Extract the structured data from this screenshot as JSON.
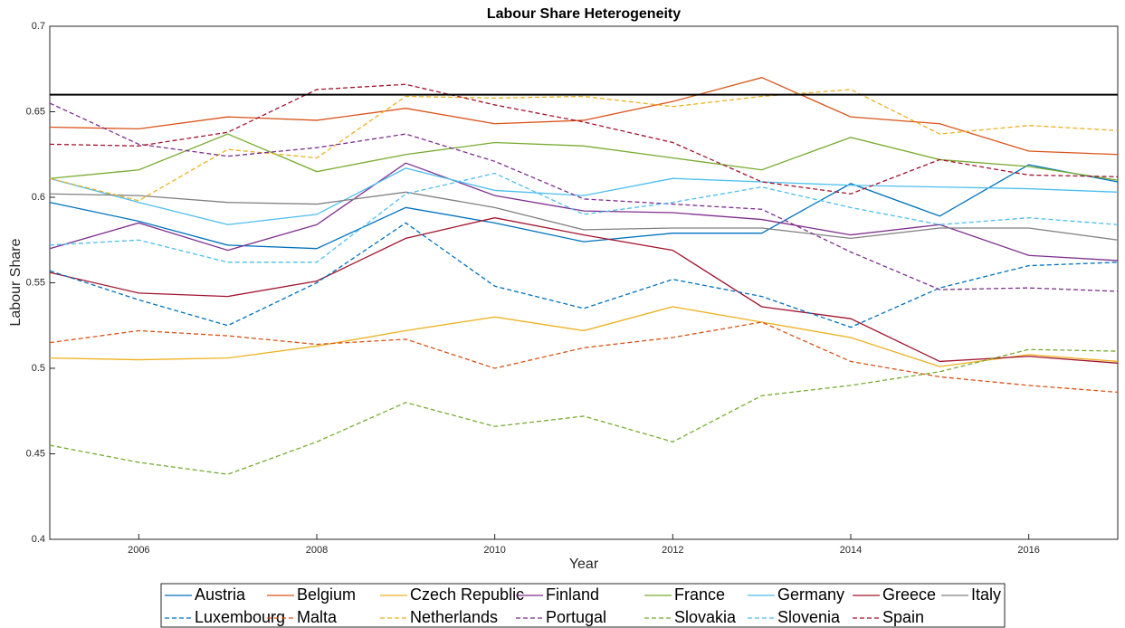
{
  "chart_data": {
    "type": "line",
    "title": "Labour Share Heterogeneity",
    "x_label": "Year",
    "y_label": "Labour Share",
    "x": [
      2005,
      2006,
      2007,
      2008,
      2009,
      2010,
      2011,
      2012,
      2013,
      2014,
      2015,
      2016,
      2017
    ],
    "xlim": [
      2005,
      2017
    ],
    "xticks": [
      2006,
      2008,
      2010,
      2012,
      2014,
      2016
    ],
    "ylim": [
      0.4,
      0.7
    ],
    "yticks": [
      0.4,
      0.45,
      0.5,
      0.55,
      0.6,
      0.65,
      0.7
    ],
    "reference_line": {
      "value": 0.66,
      "color": "#000000"
    },
    "legend": "bottom",
    "series": [
      {
        "name": "Austria",
        "color": "#0072BD",
        "line_style": "solid",
        "values": [
          0.597,
          0.586,
          0.572,
          0.57,
          0.594,
          0.585,
          0.574,
          0.579,
          0.579,
          0.608,
          0.589,
          0.619,
          0.609
        ]
      },
      {
        "name": "Belgium",
        "color": "#D95319",
        "line_style": "solid",
        "values": [
          0.641,
          0.64,
          0.647,
          0.645,
          0.652,
          0.643,
          0.645,
          0.656,
          0.67,
          0.647,
          0.643,
          0.627,
          0.625
        ]
      },
      {
        "name": "Czech Republic",
        "color": "#EDB120",
        "line_style": "solid",
        "values": [
          0.506,
          0.505,
          0.506,
          0.513,
          0.522,
          0.53,
          0.522,
          0.536,
          0.527,
          0.518,
          0.501,
          0.508,
          0.504
        ]
      },
      {
        "name": "Finland",
        "color": "#7E2F8E",
        "line_style": "solid",
        "values": [
          0.57,
          0.585,
          0.569,
          0.584,
          0.62,
          0.601,
          0.592,
          0.591,
          0.587,
          0.578,
          0.584,
          0.566,
          0.563
        ]
      },
      {
        "name": "France",
        "color": "#77AC30",
        "line_style": "solid",
        "values": [
          0.611,
          0.616,
          0.637,
          0.615,
          0.625,
          0.632,
          0.63,
          0.623,
          0.616,
          0.635,
          0.622,
          0.618,
          0.61
        ]
      },
      {
        "name": "Germany",
        "color": "#4DBEEE",
        "line_style": "solid",
        "values": [
          0.611,
          0.597,
          0.584,
          0.59,
          0.617,
          0.604,
          0.601,
          0.611,
          0.609,
          0.607,
          0.606,
          0.605,
          0.603
        ]
      },
      {
        "name": "Greece",
        "color": "#A2142F",
        "line_style": "solid",
        "values": [
          0.556,
          0.544,
          0.542,
          0.551,
          0.576,
          0.588,
          0.578,
          0.569,
          0.536,
          0.529,
          0.504,
          0.507,
          0.503
        ]
      },
      {
        "name": "Italy",
        "color": "#808080",
        "line_style": "solid",
        "values": [
          0.602,
          0.601,
          0.597,
          0.596,
          0.603,
          0.594,
          0.581,
          0.582,
          0.582,
          0.576,
          0.582,
          0.582,
          0.575
        ]
      },
      {
        "name": "Luxembourg",
        "color": "#0072BD",
        "line_style": "dashed",
        "values": [
          0.557,
          0.54,
          0.525,
          0.55,
          0.585,
          0.548,
          0.535,
          0.552,
          0.542,
          0.524,
          0.547,
          0.56,
          0.562
        ]
      },
      {
        "name": "Malta",
        "color": "#D95319",
        "line_style": "dashed",
        "values": [
          0.515,
          0.522,
          0.519,
          0.514,
          0.517,
          0.5,
          0.512,
          0.518,
          0.527,
          0.504,
          0.495,
          0.49,
          0.486
        ]
      },
      {
        "name": "Netherlands",
        "color": "#EDB120",
        "line_style": "dashed",
        "values": [
          0.611,
          0.598,
          0.628,
          0.623,
          0.659,
          0.658,
          0.659,
          0.653,
          0.659,
          0.663,
          0.637,
          0.642,
          0.639
        ]
      },
      {
        "name": "Portugal",
        "color": "#7E2F8E",
        "line_style": "dashed",
        "values": [
          0.655,
          0.631,
          0.624,
          0.629,
          0.637,
          0.621,
          0.599,
          0.596,
          0.593,
          0.568,
          0.546,
          0.547,
          0.545
        ]
      },
      {
        "name": "Slovakia",
        "color": "#77AC30",
        "line_style": "dashed",
        "values": [
          0.455,
          0.445,
          0.438,
          0.457,
          0.48,
          0.466,
          0.472,
          0.457,
          0.484,
          0.49,
          0.498,
          0.511,
          0.51
        ]
      },
      {
        "name": "Slovenia",
        "color": "#4DBEEE",
        "line_style": "dashed",
        "values": [
          0.572,
          0.575,
          0.562,
          0.562,
          0.602,
          0.614,
          0.59,
          0.597,
          0.606,
          0.594,
          0.584,
          0.588,
          0.584
        ]
      },
      {
        "name": "Spain",
        "color": "#A2142F",
        "line_style": "dashed",
        "values": [
          0.631,
          0.63,
          0.638,
          0.663,
          0.666,
          0.654,
          0.644,
          0.632,
          0.609,
          0.602,
          0.622,
          0.613,
          0.612
        ]
      }
    ]
  }
}
